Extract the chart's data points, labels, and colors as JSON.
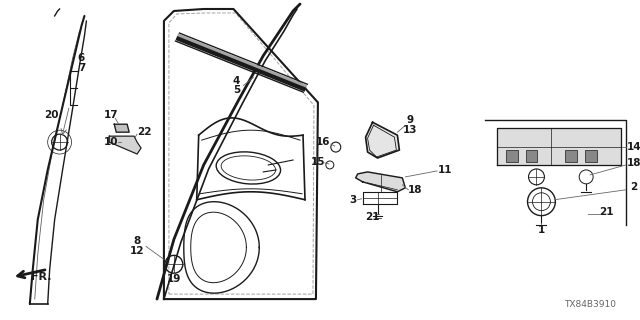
{
  "bg_color": "#ffffff",
  "line_color": "#1a1a1a",
  "gray_color": "#666666",
  "watermark": "TX84B3910",
  "fig_w": 6.4,
  "fig_h": 3.2,
  "dpi": 100
}
